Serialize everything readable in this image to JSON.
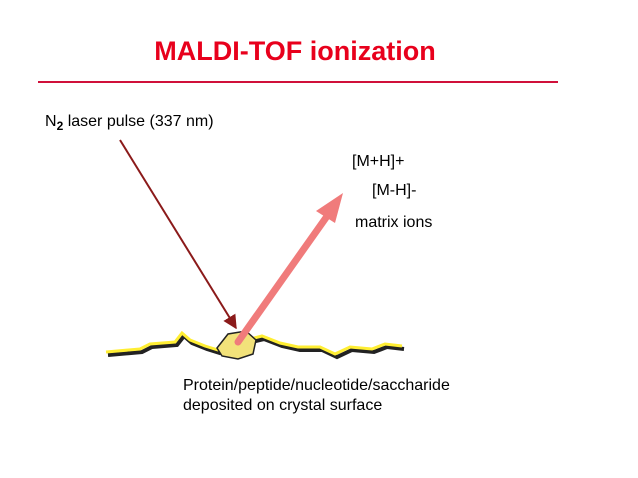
{
  "title": "MALDI-TOF ionization",
  "laser_label": {
    "prefix": "N",
    "subscript": "2",
    "rest": " laser pulse (337 nm)"
  },
  "ion_labels": [
    "[M+H]+",
    "[M-H]-",
    "matrix ions"
  ],
  "caption": [
    "Protein/peptide/nucleotide/saccharide",
    "deposited on crystal surface"
  ]
}
